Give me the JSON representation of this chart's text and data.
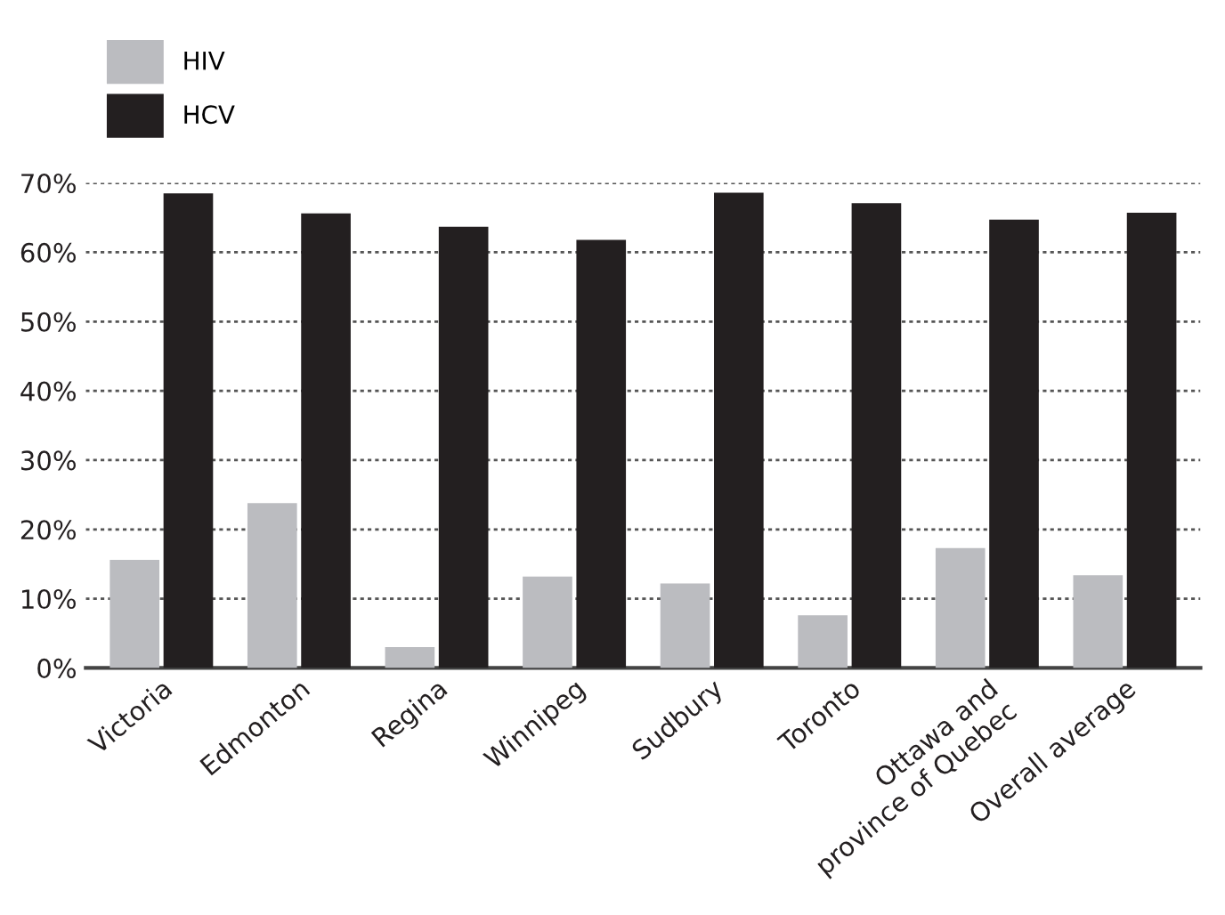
{
  "chart_data": {
    "type": "bar",
    "categories": [
      "Victoria",
      "Edmonton",
      "Regina",
      "Winnipeg",
      "Sudbury",
      "Toronto",
      "Ottawa and\nprovince of Quebec",
      "Overall average"
    ],
    "series": [
      {
        "name": "HIV",
        "color": "#bbbcc0",
        "values": [
          15.6,
          23.8,
          3.0,
          13.2,
          12.2,
          7.6,
          17.3,
          13.4
        ]
      },
      {
        "name": "HCV",
        "color": "#231f20",
        "values": [
          68.5,
          65.6,
          63.7,
          61.8,
          68.6,
          67.1,
          64.7,
          65.7
        ]
      }
    ],
    "ylim": [
      0,
      70
    ],
    "yticks": [
      {
        "value": 0,
        "label": "0%"
      },
      {
        "value": 10,
        "label": "10%"
      },
      {
        "value": 20,
        "label": "20%"
      },
      {
        "value": 30,
        "label": "30%"
      },
      {
        "value": 40,
        "label": "40%"
      },
      {
        "value": 50,
        "label": "50%"
      },
      {
        "value": 60,
        "label": "60%"
      },
      {
        "value": 70,
        "label": "70%"
      }
    ],
    "grid": "y",
    "legend": "top left"
  }
}
